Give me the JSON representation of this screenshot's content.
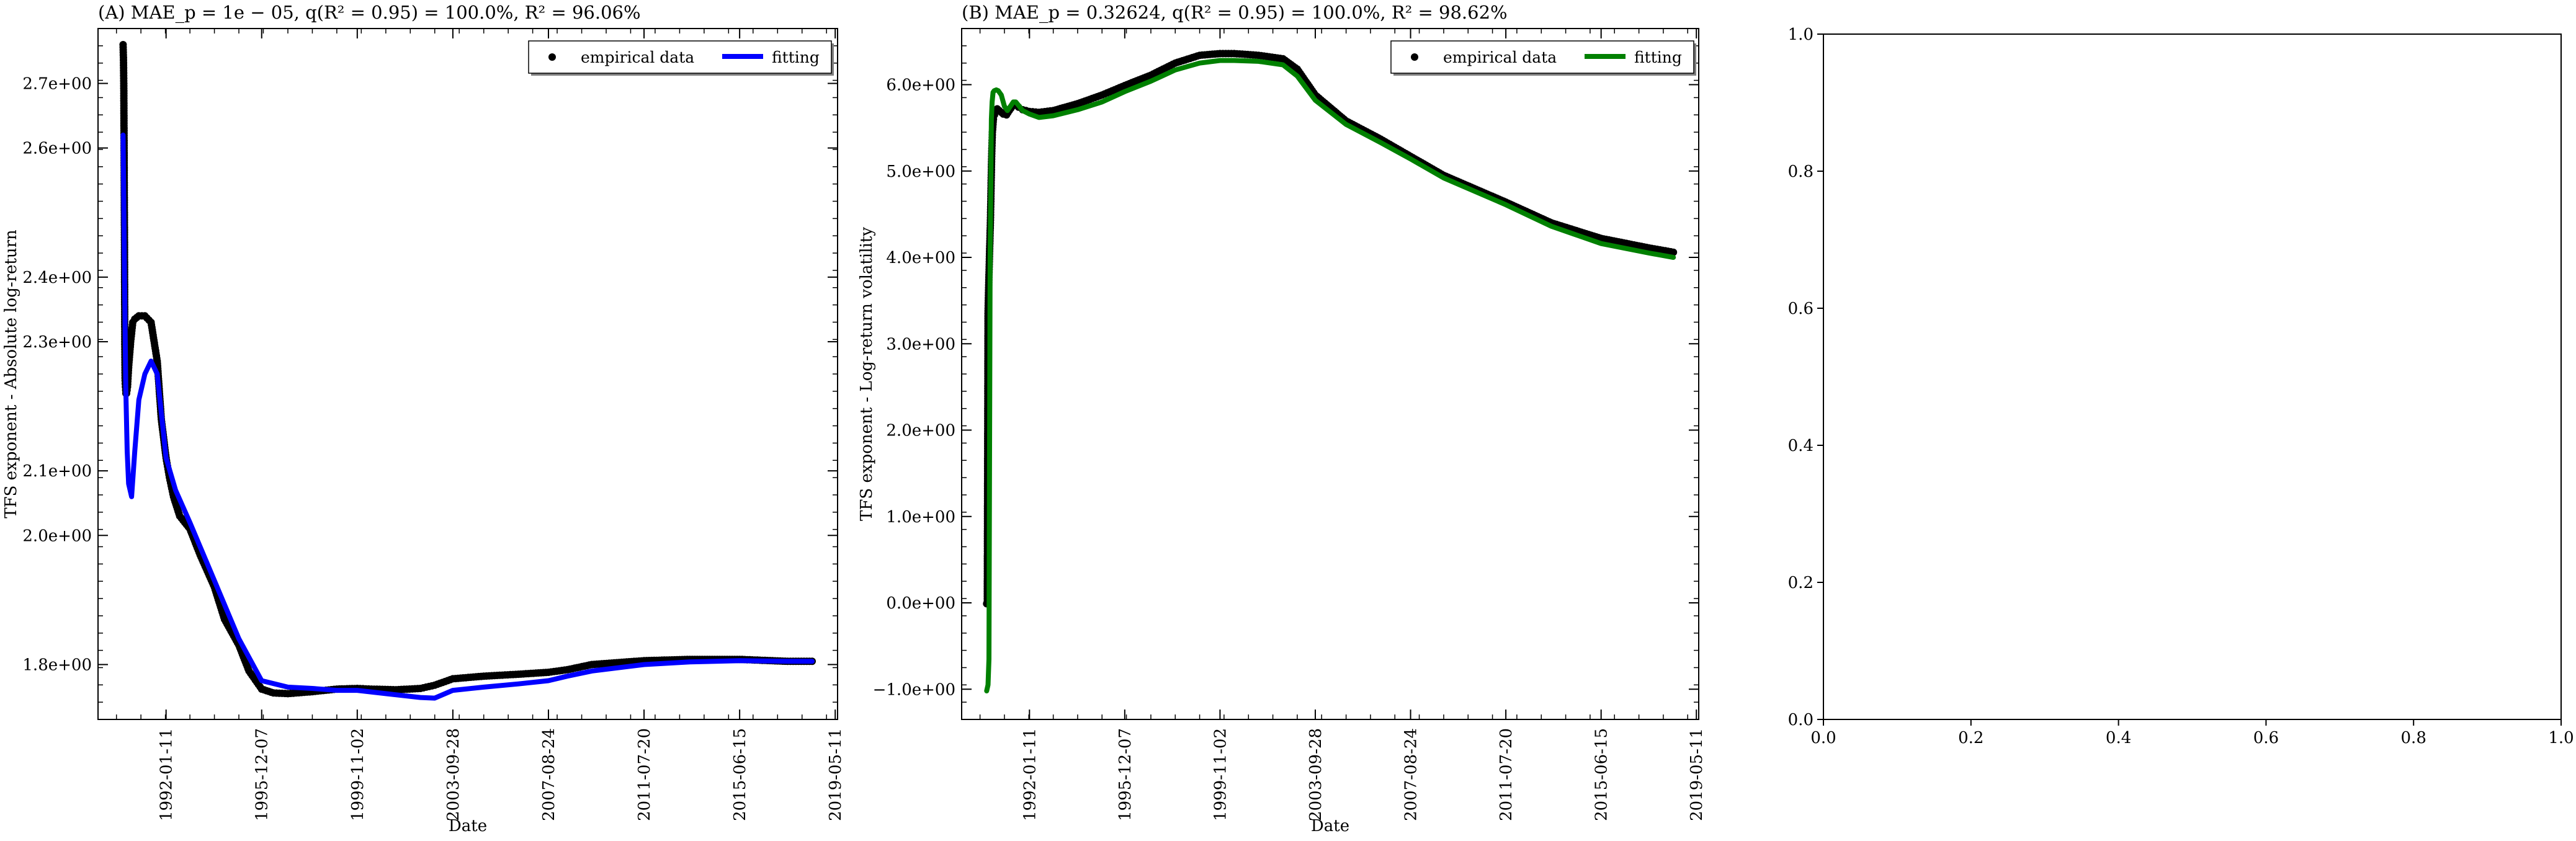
{
  "chart_data": [
    {
      "type": "line",
      "title": "(A) MAE_p = 1e − 05, q(R² = 0.95) = 100.0%, R² = 96.06%",
      "xlabel": "Date",
      "ylabel": "TFS exponent - Absolute log-return",
      "x_ticks": [
        "1992-01-11",
        "1995-12-07",
        "1999-11-02",
        "2003-09-28",
        "2007-08-24",
        "2011-07-20",
        "2015-06-15",
        "2019-05-11"
      ],
      "y_ticks": [
        "1.8e+00",
        "2.0e+00",
        "2.1e+00",
        "2.3e+00",
        "2.4e+00",
        "2.6e+00",
        "2.7e+00"
      ],
      "xlim": [
        "1989-04-01",
        "2019-06-15"
      ],
      "ylim": [
        1.715,
        2.785
      ],
      "legend": "top-right",
      "series": [
        {
          "name": "empirical data",
          "kind": "scatter",
          "color": "#000000",
          "x": [
            "1990-04-10",
            "1990-04-15",
            "1990-04-20",
            "1990-04-25",
            "1990-05-01",
            "1990-05-05",
            "1990-05-10",
            "1990-05-15",
            "1990-05-22",
            "1990-06-01",
            "1990-06-15",
            "1990-07-01",
            "1990-08-01",
            "1990-09-01",
            "1990-10-01",
            "1990-12-01",
            "1991-03-01",
            "1991-06-01",
            "1991-09-01",
            "1991-11-01",
            "1992-01-11",
            "1992-03-01",
            "1992-05-01",
            "1992-08-01",
            "1993-01-01",
            "1993-06-01",
            "1994-01-01",
            "1994-06-01",
            "1995-01-01",
            "1995-06-01",
            "1995-12-07",
            "1996-06-01",
            "1997-01-01",
            "1998-01-01",
            "1999-01-01",
            "1999-11-02",
            "2000-06-01",
            "2001-06-01",
            "2002-06-01",
            "2003-01-01",
            "2003-09-28",
            "2005-01-01",
            "2006-06-01",
            "2007-08-24",
            "2008-06-01",
            "2009-06-01",
            "2011-07-20",
            "2013-06-01",
            "2015-06-15",
            "2017-06-01",
            "2018-06-01"
          ],
          "y": [
            2.76,
            2.74,
            2.7,
            2.6,
            2.45,
            2.3,
            2.24,
            2.23,
            2.22,
            2.22,
            2.23,
            2.26,
            2.3,
            2.33,
            2.335,
            2.34,
            2.34,
            2.33,
            2.27,
            2.18,
            2.12,
            2.09,
            2.06,
            2.03,
            2.01,
            1.97,
            1.92,
            1.87,
            1.83,
            1.79,
            1.762,
            1.756,
            1.755,
            1.758,
            1.762,
            1.763,
            1.762,
            1.761,
            1.763,
            1.768,
            1.778,
            1.782,
            1.785,
            1.788,
            1.792,
            1.8,
            1.806,
            1.808,
            1.808,
            1.805,
            1.805
          ]
        },
        {
          "name": "fitting",
          "kind": "line",
          "color": "#0000ff",
          "x": [
            "1990-04-10",
            "1990-05-01",
            "1990-05-20",
            "1990-06-10",
            "1990-07-01",
            "1990-08-15",
            "1990-10-01",
            "1990-12-01",
            "1991-03-01",
            "1991-06-01",
            "1991-09-01",
            "1992-01-11",
            "1992-06-01",
            "1993-01-01",
            "1994-01-01",
            "1995-01-01",
            "1995-12-07",
            "1997-01-01",
            "1998-01-01",
            "1999-01-01",
            "1999-11-02",
            "2001-01-01",
            "2002-06-01",
            "2003-01-01",
            "2003-09-28",
            "2005-01-01",
            "2006-06-01",
            "2007-08-24",
            "2008-06-01",
            "2009-06-01",
            "2011-07-20",
            "2013-06-01",
            "2015-06-15",
            "2017-06-01",
            "2018-06-01"
          ],
          "y": [
            2.62,
            2.4,
            2.23,
            2.13,
            2.08,
            2.06,
            2.13,
            2.21,
            2.25,
            2.27,
            2.25,
            2.12,
            2.07,
            2.02,
            1.93,
            1.84,
            1.775,
            1.765,
            1.763,
            1.76,
            1.76,
            1.755,
            1.749,
            1.748,
            1.76,
            1.765,
            1.77,
            1.775,
            1.782,
            1.79,
            1.8,
            1.804,
            1.806,
            1.805,
            1.805
          ]
        }
      ]
    },
    {
      "type": "line",
      "title": "(B) MAE_p = 0.32624, q(R² = 0.95) = 100.0%, R² = 98.62%",
      "xlabel": "Date",
      "ylabel": "TFS exponent - Log-return volatility",
      "x_ticks": [
        "1992-01-11",
        "1995-12-07",
        "1999-11-02",
        "2003-09-28",
        "2007-08-24",
        "2011-07-20",
        "2015-06-15",
        "2019-05-11"
      ],
      "y_ticks": [
        "−1.0e+00",
        "0.0e+00",
        "1.0e+00",
        "2.0e+00",
        "3.0e+00",
        "4.0e+00",
        "5.0e+00",
        "6.0e+00"
      ],
      "xlim": [
        "1989-04-01",
        "2019-06-15"
      ],
      "ylim": [
        -1.35,
        6.65
      ],
      "legend": "top-right",
      "series": [
        {
          "name": "empirical data",
          "kind": "scatter",
          "color": "#000000",
          "x": [
            "1990-04-10",
            "1990-04-20",
            "1990-05-01",
            "1990-05-15",
            "1990-05-25",
            "1990-06-05",
            "1990-06-15",
            "1990-06-25",
            "1990-07-05",
            "1990-07-20",
            "1990-08-05",
            "1990-08-20",
            "1990-09-15",
            "1990-10-15",
            "1990-11-15",
            "1990-12-15",
            "1991-02-01",
            "1991-03-15",
            "1991-05-01",
            "1991-06-15",
            "1991-08-01",
            "1991-10-01",
            "1992-01-11",
            "1992-06-01",
            "1993-01-01",
            "1994-01-01",
            "1995-01-01",
            "1995-12-07",
            "1997-01-01",
            "1998-01-01",
            "1999-01-01",
            "1999-11-02",
            "2000-06-01",
            "2001-06-01",
            "2002-06-01",
            "2003-01-01",
            "2003-09-28",
            "2005-01-01",
            "2006-06-01",
            "2007-08-24",
            "2009-01-01",
            "2011-07-20",
            "2013-06-01",
            "2015-06-15",
            "2017-06-01",
            "2018-06-01"
          ],
          "y": [
            -0.01,
            -0.01,
            3.35,
            3.8,
            4.1,
            4.4,
            4.8,
            5.2,
            5.45,
            5.6,
            5.65,
            5.7,
            5.72,
            5.7,
            5.68,
            5.66,
            5.65,
            5.7,
            5.75,
            5.78,
            5.74,
            5.71,
            5.69,
            5.68,
            5.7,
            5.78,
            5.88,
            5.99,
            6.11,
            6.25,
            6.34,
            6.36,
            6.36,
            6.34,
            6.3,
            6.18,
            5.88,
            5.58,
            5.37,
            5.17,
            4.95,
            4.64,
            4.4,
            4.22,
            4.11,
            4.06
          ]
        },
        {
          "name": "fitting",
          "kind": "line",
          "color": "#008000",
          "x": [
            "1990-04-10",
            "1990-05-01",
            "1990-05-15",
            "1990-06-01",
            "1990-06-20",
            "1990-07-01",
            "1990-07-15",
            "1990-08-01",
            "1990-09-01",
            "1990-10-01",
            "1990-11-15",
            "1991-01-01",
            "1991-02-15",
            "1991-04-01",
            "1991-05-15",
            "1991-06-20",
            "1991-08-01",
            "1991-10-01",
            "1992-01-11",
            "1992-06-01",
            "1993-01-01",
            "1994-01-01",
            "1995-01-01",
            "1995-12-07",
            "1997-01-01",
            "1998-01-01",
            "1999-01-01",
            "1999-11-02",
            "2000-06-01",
            "2001-06-01",
            "2002-06-01",
            "2003-01-01",
            "2003-09-28",
            "2005-01-01",
            "2006-06-01",
            "2007-08-24",
            "2009-01-01",
            "2011-07-20",
            "2013-06-01",
            "2015-06-15",
            "2017-06-01",
            "2018-06-01"
          ],
          "y": [
            -1.02,
            -0.95,
            -0.65,
            4.0,
            5.6,
            5.8,
            5.91,
            5.93,
            5.94,
            5.93,
            5.88,
            5.75,
            5.7,
            5.75,
            5.8,
            5.8,
            5.76,
            5.7,
            5.66,
            5.62,
            5.64,
            5.71,
            5.8,
            5.92,
            6.04,
            6.17,
            6.25,
            6.28,
            6.28,
            6.27,
            6.23,
            6.1,
            5.82,
            5.54,
            5.33,
            5.14,
            4.92,
            4.61,
            4.36,
            4.16,
            4.05,
            4.0
          ]
        }
      ]
    },
    {
      "type": "line",
      "title": "",
      "xlabel": "",
      "ylabel": "",
      "x_ticks": [
        "0.0",
        "0.2",
        "0.4",
        "0.6",
        "0.8",
        "1.0"
      ],
      "y_ticks": [
        "0.0",
        "0.2",
        "0.4",
        "0.6",
        "0.8",
        "1.0"
      ],
      "xlim": [
        0,
        1
      ],
      "ylim": [
        0,
        1
      ],
      "series": []
    }
  ]
}
